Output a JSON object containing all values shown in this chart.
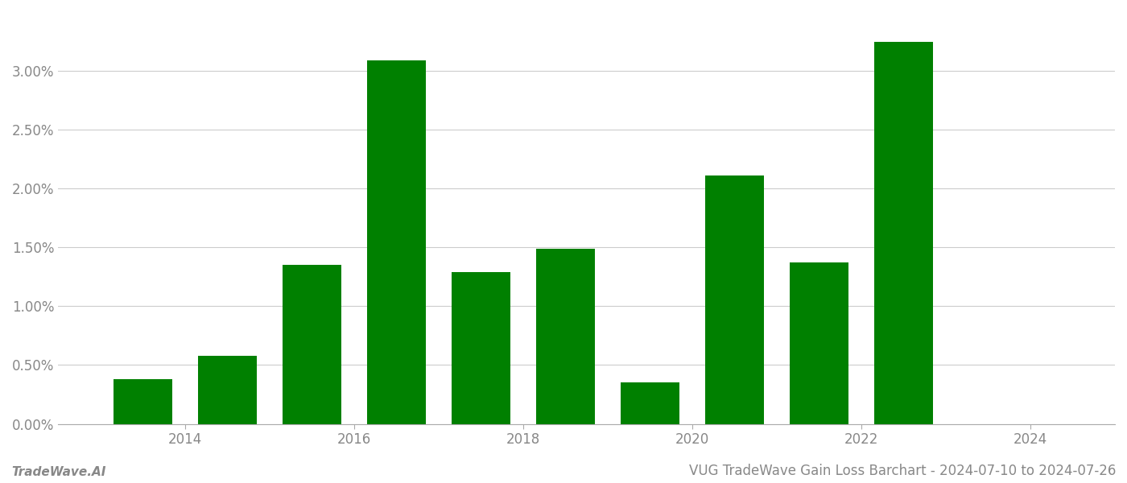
{
  "years": [
    2014,
    2015,
    2016,
    2017,
    2018,
    2019,
    2020,
    2021,
    2022,
    2023
  ],
  "values": [
    0.0038,
    0.0058,
    0.0135,
    0.0309,
    0.0129,
    0.0149,
    0.0035,
    0.0211,
    0.0137,
    0.0325
  ],
  "bar_color": "#008000",
  "background_color": "#ffffff",
  "grid_color": "#cccccc",
  "title": "VUG TradeWave Gain Loss Barchart - 2024-07-10 to 2024-07-26",
  "watermark": "TradeWave.AI",
  "ylim": [
    0,
    0.035
  ],
  "yticks": [
    0.0,
    0.005,
    0.01,
    0.015,
    0.02,
    0.025,
    0.03
  ],
  "xtick_labels": [
    "2014",
    "2016",
    "2018",
    "2020",
    "2022",
    "2024"
  ],
  "xtick_positions": [
    2014.5,
    2016.5,
    2018.5,
    2020.5,
    2022.5,
    2024.5
  ],
  "title_fontsize": 12,
  "watermark_fontsize": 11,
  "tick_fontsize": 12
}
